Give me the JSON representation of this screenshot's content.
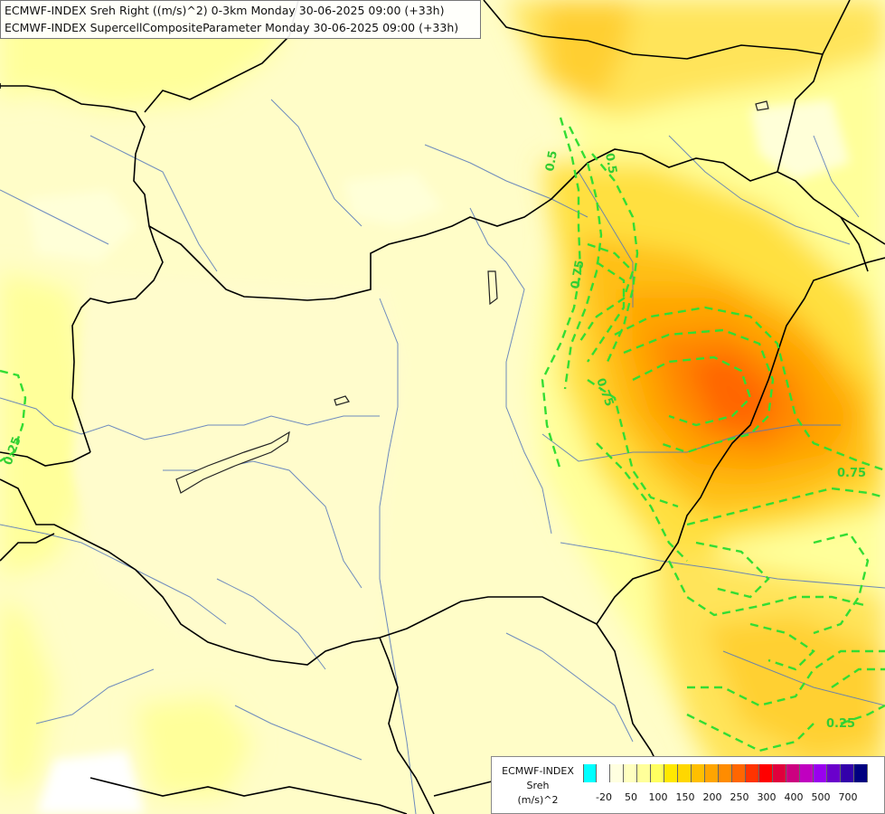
{
  "title": {
    "line1": "ECMWF-INDEX Sreh Right ((m/s)^2) 0-3km Monday 30-06-2025 09:00 (+33h)",
    "line2": "ECMWF-INDEX SupercellCompositeParameter Monday 30-06-2025 09:00 (+33h)"
  },
  "contour_labels": [
    {
      "text": "0.5"
    },
    {
      "text": "0.5"
    },
    {
      "text": "0.75"
    },
    {
      "text": "0.75"
    },
    {
      "text": "0.75"
    },
    {
      "text": "0.25"
    },
    {
      "text": "0.25"
    }
  ],
  "legend": {
    "line1": "ECMWF-INDEX",
    "line2": "Sreh",
    "line3": "(m/s)^2",
    "colors": [
      "#00ffff",
      "#ffffff",
      "#ffffe0",
      "#ffffc0",
      "#ffff9a",
      "#ffff60",
      "#ffe800",
      "#ffd700",
      "#ffbf00",
      "#ffa500",
      "#ff8c00",
      "#ff6600",
      "#ff3300",
      "#ff0000",
      "#e0003c",
      "#cc0080",
      "#c000c0",
      "#9900ee",
      "#6a00cc",
      "#3300aa",
      "#000080"
    ],
    "ticks": [
      "-20",
      "50",
      "100",
      "150",
      "200",
      "250",
      "300",
      "400",
      "500",
      "700"
    ]
  },
  "colors": {
    "background": "#fffdc8",
    "contour": "#33dd33",
    "borders": "#000000",
    "rivers": "#5577bb"
  }
}
